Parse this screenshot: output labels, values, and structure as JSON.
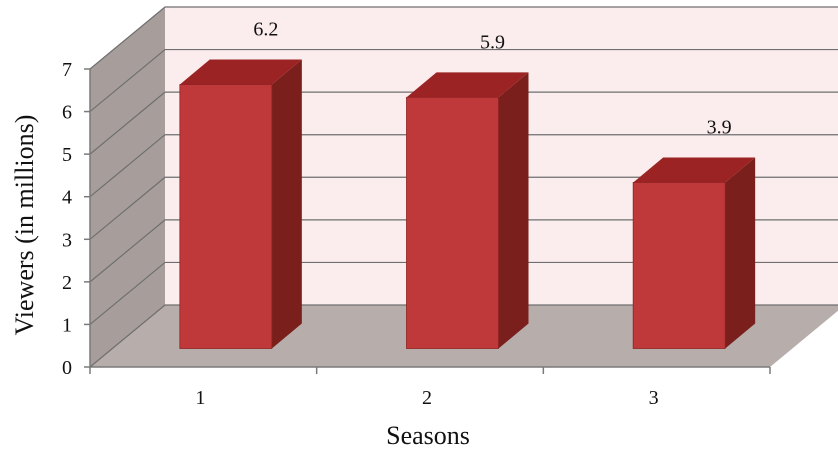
{
  "chart_data": {
    "type": "bar",
    "categories": [
      "1",
      "2",
      "3"
    ],
    "values": [
      6.2,
      5.9,
      3.9
    ],
    "data_labels": [
      "6.2",
      "5.9",
      "3.9"
    ],
    "title": "",
    "xlabel": "Seasons",
    "ylabel": "Viewers (in millions)",
    "ylim": [
      0,
      7
    ],
    "y_ticks": [
      "0",
      "1",
      "2",
      "3",
      "4",
      "5",
      "6",
      "7"
    ],
    "grid": true,
    "legend": "none",
    "three_d": true
  },
  "colors": {
    "bar_front": "#c0393a",
    "bar_top": "#9b2323",
    "bar_side": "#7a1f1b",
    "back_wall": "#fbecee",
    "side_wall": "#a79e9c",
    "floor": "#b7adab",
    "gridline": "#6f6f6f",
    "axis": "#7a7a7a"
  }
}
